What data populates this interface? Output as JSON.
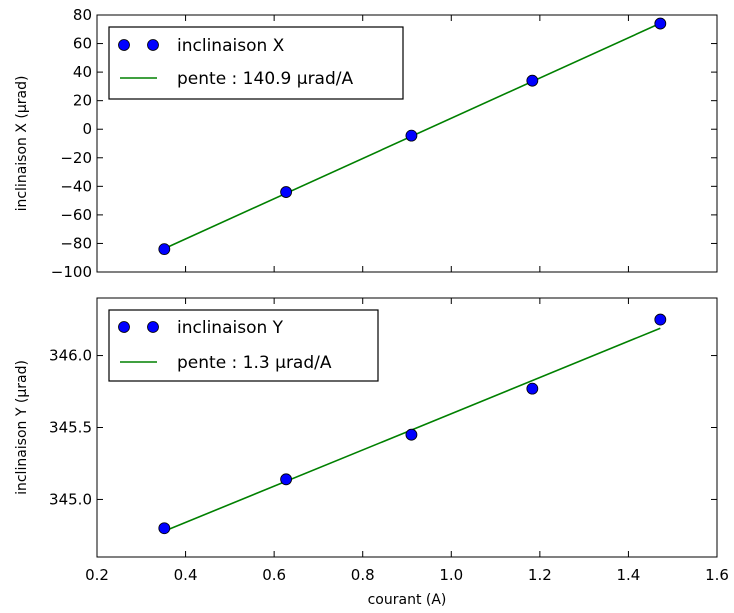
{
  "chart_data": [
    {
      "type": "scatter",
      "title": "",
      "xlabel": "",
      "ylabel": "inclinaison X (µrad)",
      "xlim": [
        0.2,
        1.6
      ],
      "ylim": [
        -100,
        80
      ],
      "yticks": [
        "80",
        "60",
        "40",
        "20",
        "0",
        "−20",
        "−40",
        "−60",
        "−80",
        "−100"
      ],
      "show_x_tick_labels": false,
      "grid": false,
      "legend_position": "top-left",
      "series": [
        {
          "name": "inclinaison X",
          "kind": "points",
          "color": "#0000ff",
          "x": [
            0.352,
            0.627,
            0.91,
            1.183,
            1.472
          ],
          "y": [
            -84.0,
            -44.0,
            -4.5,
            34.0,
            74.0
          ]
        },
        {
          "name": "pente : 140.9 µrad/A",
          "kind": "line",
          "color": "#008000",
          "x": [
            0.352,
            1.472
          ],
          "y": [
            -83.6,
            74.2
          ]
        }
      ]
    },
    {
      "type": "scatter",
      "title": "",
      "xlabel": "courant (A)",
      "ylabel": "inclinaison Y (µrad)",
      "xlim": [
        0.2,
        1.6
      ],
      "ylim": [
        344.6,
        346.4
      ],
      "yticks": [
        "346.0",
        "345.5",
        "345.0"
      ],
      "xticks": [
        "0.2",
        "0.4",
        "0.6",
        "0.8",
        "1.0",
        "1.2",
        "1.4",
        "1.6"
      ],
      "grid": false,
      "legend_position": "top-left",
      "series": [
        {
          "name": "inclinaison Y",
          "kind": "points",
          "color": "#0000ff",
          "x": [
            0.352,
            0.627,
            0.91,
            1.183,
            1.472
          ],
          "y": [
            344.8,
            345.14,
            345.45,
            345.77,
            346.25
          ]
        },
        {
          "name": "pente : 1.3 µrad/A",
          "kind": "line",
          "color": "#008000",
          "x": [
            0.352,
            1.472
          ],
          "y": [
            344.78,
            346.19
          ]
        }
      ]
    }
  ]
}
